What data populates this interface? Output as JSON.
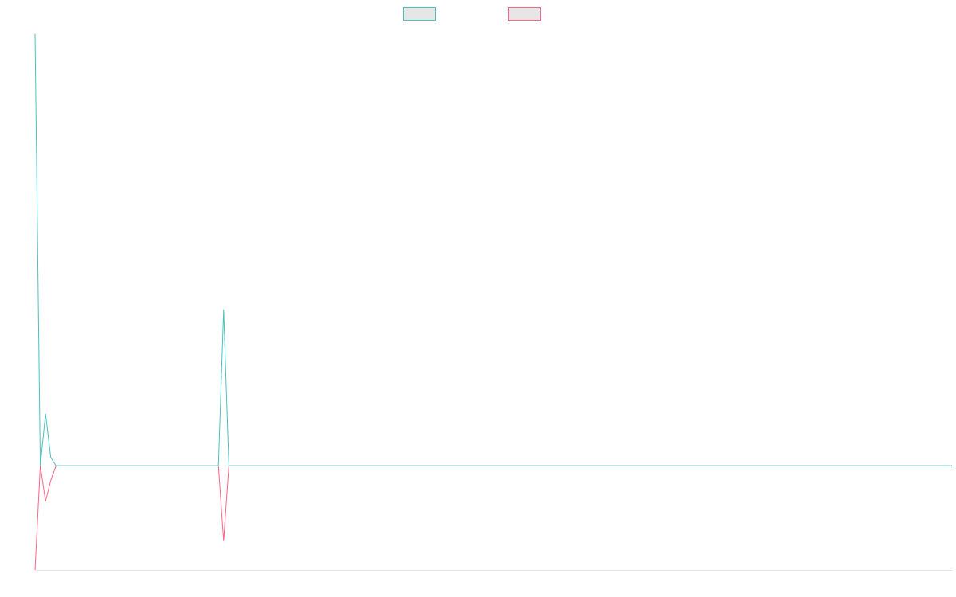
{
  "colors": {
    "series_a": "#4bc0c0",
    "series_b": "#ff6384",
    "legend_fill": "#e6e6e6",
    "baseline_axis": "#e5e5e5"
  },
  "chart_data": {
    "type": "line",
    "x": [
      0,
      1,
      2,
      3,
      4,
      5,
      6,
      7,
      8,
      9,
      10,
      11,
      12,
      13,
      14,
      15,
      16,
      17,
      18,
      19,
      20,
      21,
      22,
      23,
      24,
      25,
      26,
      27,
      28,
      29,
      30,
      31,
      32,
      33,
      34,
      35,
      36,
      37,
      38,
      39,
      40,
      41,
      42,
      43,
      44,
      45,
      46,
      47,
      48,
      49,
      50,
      51,
      52,
      53,
      54,
      55,
      56,
      57,
      58,
      59,
      60,
      61,
      62,
      63,
      64,
      65,
      66,
      67,
      68,
      69,
      70,
      71,
      72,
      73,
      74,
      75,
      76,
      77,
      78,
      79,
      80,
      81,
      82,
      83,
      84,
      85,
      86,
      87,
      88,
      89,
      90,
      91,
      92,
      93,
      94,
      95,
      96,
      97,
      98,
      99,
      100,
      101,
      102,
      103,
      104,
      105,
      106,
      107,
      108,
      109,
      110,
      111,
      112,
      113,
      114,
      115,
      116,
      117,
      118,
      119,
      120,
      121,
      122,
      123,
      124,
      125,
      126,
      127,
      128,
      129,
      130,
      131,
      132,
      133,
      134,
      135,
      136,
      137,
      138,
      139,
      140,
      141,
      142,
      143,
      144,
      145,
      146,
      147,
      148,
      149,
      150,
      151,
      152,
      153,
      154,
      155,
      156,
      157,
      158,
      159,
      160,
      161,
      162,
      163,
      164,
      165,
      166,
      167,
      168,
      169,
      170,
      171,
      172,
      173,
      174,
      175
    ],
    "ylim": [
      -100,
      420
    ],
    "grid": false,
    "legend_position": "top-center",
    "series": [
      {
        "name": "",
        "values": [
          415,
          0,
          50,
          8,
          0,
          0,
          0,
          0,
          0,
          0,
          0,
          0,
          0,
          0,
          0,
          0,
          0,
          0,
          0,
          0,
          0,
          0,
          0,
          0,
          0,
          0,
          0,
          0,
          0,
          0,
          0,
          0,
          0,
          0,
          0,
          0,
          150,
          0,
          0,
          0,
          0,
          0,
          0,
          0,
          0,
          0,
          0,
          0,
          0,
          0,
          0,
          0,
          0,
          0,
          0,
          0,
          0,
          0,
          0,
          0,
          0,
          0,
          0,
          0,
          0,
          0,
          0,
          0,
          0,
          0,
          0,
          0,
          0,
          0,
          0,
          0,
          0,
          0,
          0,
          0,
          0,
          0,
          0,
          0,
          0,
          0,
          0,
          0,
          0,
          0,
          0,
          0,
          0,
          0,
          0,
          0,
          0,
          0,
          0,
          0,
          0,
          0,
          0,
          0,
          0,
          0,
          0,
          0,
          0,
          0,
          0,
          0,
          0,
          0,
          0,
          0,
          0,
          0,
          0,
          0,
          0,
          0,
          0,
          0,
          0,
          0,
          0,
          0,
          0,
          0,
          0,
          0,
          0,
          0,
          0,
          0,
          0,
          0,
          0,
          0,
          0,
          0,
          0,
          0,
          0,
          0,
          0,
          0,
          0,
          0,
          0,
          0,
          0,
          0,
          0,
          0,
          0,
          0,
          0,
          0,
          0,
          0,
          0,
          0,
          0,
          0,
          0,
          0,
          0,
          0,
          0,
          0,
          0,
          0,
          0,
          0
        ]
      },
      {
        "name": "",
        "values": [
          -100,
          0,
          -34,
          -14,
          0,
          0,
          0,
          0,
          0,
          0,
          0,
          0,
          0,
          0,
          0,
          0,
          0,
          0,
          0,
          0,
          0,
          0,
          0,
          0,
          0,
          0,
          0,
          0,
          0,
          0,
          0,
          0,
          0,
          0,
          0,
          0,
          -72,
          0,
          0,
          0,
          0,
          0,
          0,
          0,
          0,
          0,
          0,
          0,
          0,
          0,
          0,
          0,
          0,
          0,
          0,
          0,
          0,
          0,
          0,
          0,
          0,
          0,
          0,
          0,
          0,
          0,
          0,
          0,
          0,
          0,
          0,
          0,
          0,
          0,
          0,
          0,
          0,
          0,
          0,
          0,
          0,
          0,
          0,
          0,
          0,
          0,
          0,
          0,
          0,
          0,
          0,
          0,
          0,
          0,
          0,
          0,
          0,
          0,
          0,
          0,
          0,
          0,
          0,
          0,
          0,
          0,
          0,
          0,
          0,
          0,
          0,
          0,
          0,
          0,
          0,
          0,
          0,
          0,
          0,
          0,
          0,
          0,
          0,
          0,
          0,
          0,
          0,
          0,
          0,
          0,
          0,
          0,
          0,
          0,
          0,
          0,
          0,
          0,
          0,
          0,
          0,
          0,
          0,
          0,
          0,
          0,
          0,
          0,
          0,
          0,
          0,
          0,
          0,
          0,
          0,
          0,
          0,
          0,
          0,
          0,
          0,
          0,
          0,
          0,
          0,
          0,
          0,
          0,
          0,
          0,
          0,
          0,
          0,
          0,
          0,
          0
        ]
      }
    ]
  }
}
